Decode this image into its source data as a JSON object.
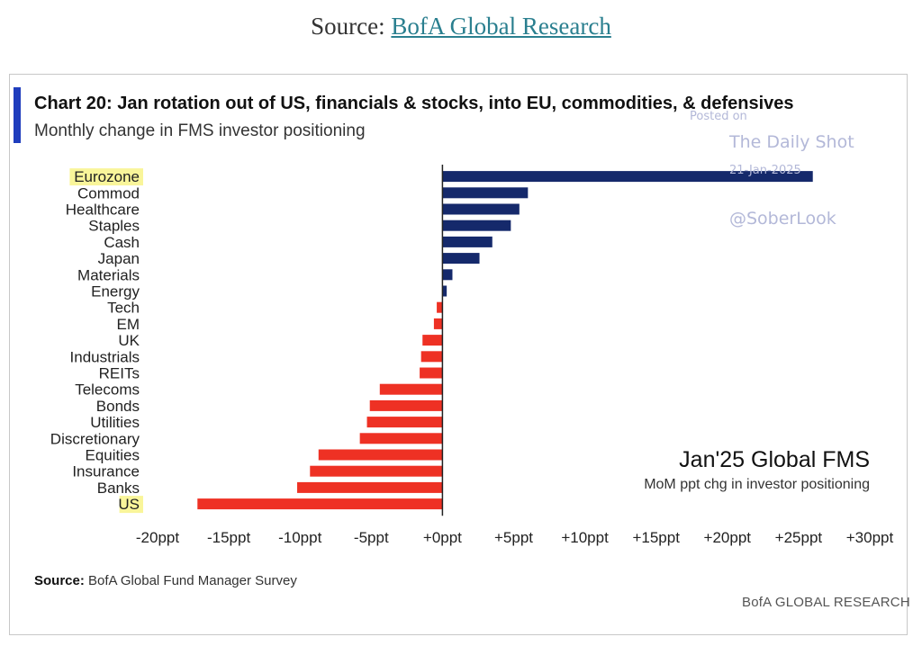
{
  "page": {
    "source_prefix": "Source: ",
    "source_link": "BofA Global Research"
  },
  "chart_header": {
    "title": "Chart 20: Jan rotation out of US, financials & stocks, into EU, commodities, & defensives",
    "subtitle": "Monthly change in FMS investor positioning"
  },
  "watermark": {
    "line1": "Posted on",
    "line2": "The Daily Shot",
    "line3": "21-Jan-2025",
    "line4": "@SoberLook"
  },
  "annotation": {
    "title": "Jan'25 Global FMS",
    "subtitle": "MoM ppt chg in investor positioning"
  },
  "footer": {
    "source_label": "Source:",
    "source_text": "BofA Global Fund Manager Survey",
    "brand": "BofA GLOBAL RESEARCH"
  },
  "colors": {
    "positive": "#15296b",
    "negative": "#ee3124",
    "highlight": "#f9f59a",
    "accent": "#1f3dbd"
  },
  "chart_data": {
    "type": "bar",
    "orientation": "horizontal",
    "categories": [
      "Eurozone",
      "Commod",
      "Healthcare",
      "Staples",
      "Cash",
      "Japan",
      "Materials",
      "Energy",
      "Tech",
      "EM",
      "UK",
      "Industrials",
      "REITs",
      "Telecoms",
      "Bonds",
      "Utilities",
      "Discretionary",
      "Equities",
      "Insurance",
      "Banks",
      "US"
    ],
    "values": [
      26,
      6,
      5.4,
      4.8,
      3.5,
      2.6,
      0.7,
      0.3,
      -0.4,
      -0.6,
      -1.4,
      -1.5,
      -1.6,
      -4.4,
      -5.1,
      -5.3,
      -5.8,
      -8.7,
      -9.3,
      -10.2,
      -17.2
    ],
    "highlighted": [
      "Eurozone",
      "US"
    ],
    "xlim": [
      -20,
      30
    ],
    "xticks": [
      -20,
      -15,
      -10,
      -5,
      0,
      5,
      10,
      15,
      20,
      25,
      30
    ],
    "xtick_labels": [
      "-20ppt",
      "-15ppt",
      "-10ppt",
      "-5ppt",
      "+0ppt",
      "+5ppt",
      "+10ppt",
      "+15ppt",
      "+20ppt",
      "+25ppt",
      "+30ppt"
    ],
    "grid": false,
    "legend": "none"
  }
}
